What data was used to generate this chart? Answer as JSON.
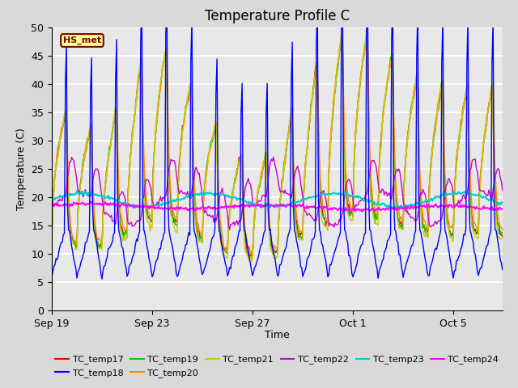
{
  "title": "Temperature Profile C",
  "xlabel": "Time",
  "ylabel": "Temperature (C)",
  "ylim": [
    0,
    50
  ],
  "fig_bg_color": "#d9d9d9",
  "plot_bg_color": "#e8e8e8",
  "grid_color": "#ffffff",
  "annotation_text": "HS_met",
  "annotation_bg": "#ffff99",
  "annotation_border": "#800000",
  "annotation_text_color": "#800000",
  "series_colors": {
    "TC_temp17": "#ff0000",
    "TC_temp18": "#0000ff",
    "TC_temp19": "#00cc00",
    "TC_temp20": "#ff8800",
    "TC_temp21": "#cccc00",
    "TC_temp22": "#cc00cc",
    "TC_temp23": "#00cccc",
    "TC_temp24": "#ff00ff"
  },
  "x_ticks_labels": [
    "Sep 19",
    "Sep 23",
    "Sep 27",
    "Oct 1",
    "Oct 5"
  ],
  "legend_order": [
    "TC_temp17",
    "TC_temp18",
    "TC_temp19",
    "TC_temp20",
    "TC_temp21",
    "TC_temp22",
    "TC_temp23",
    "TC_temp24"
  ],
  "title_fontsize": 12,
  "tick_fontsize": 9,
  "label_fontsize": 9,
  "legend_fontsize": 8
}
